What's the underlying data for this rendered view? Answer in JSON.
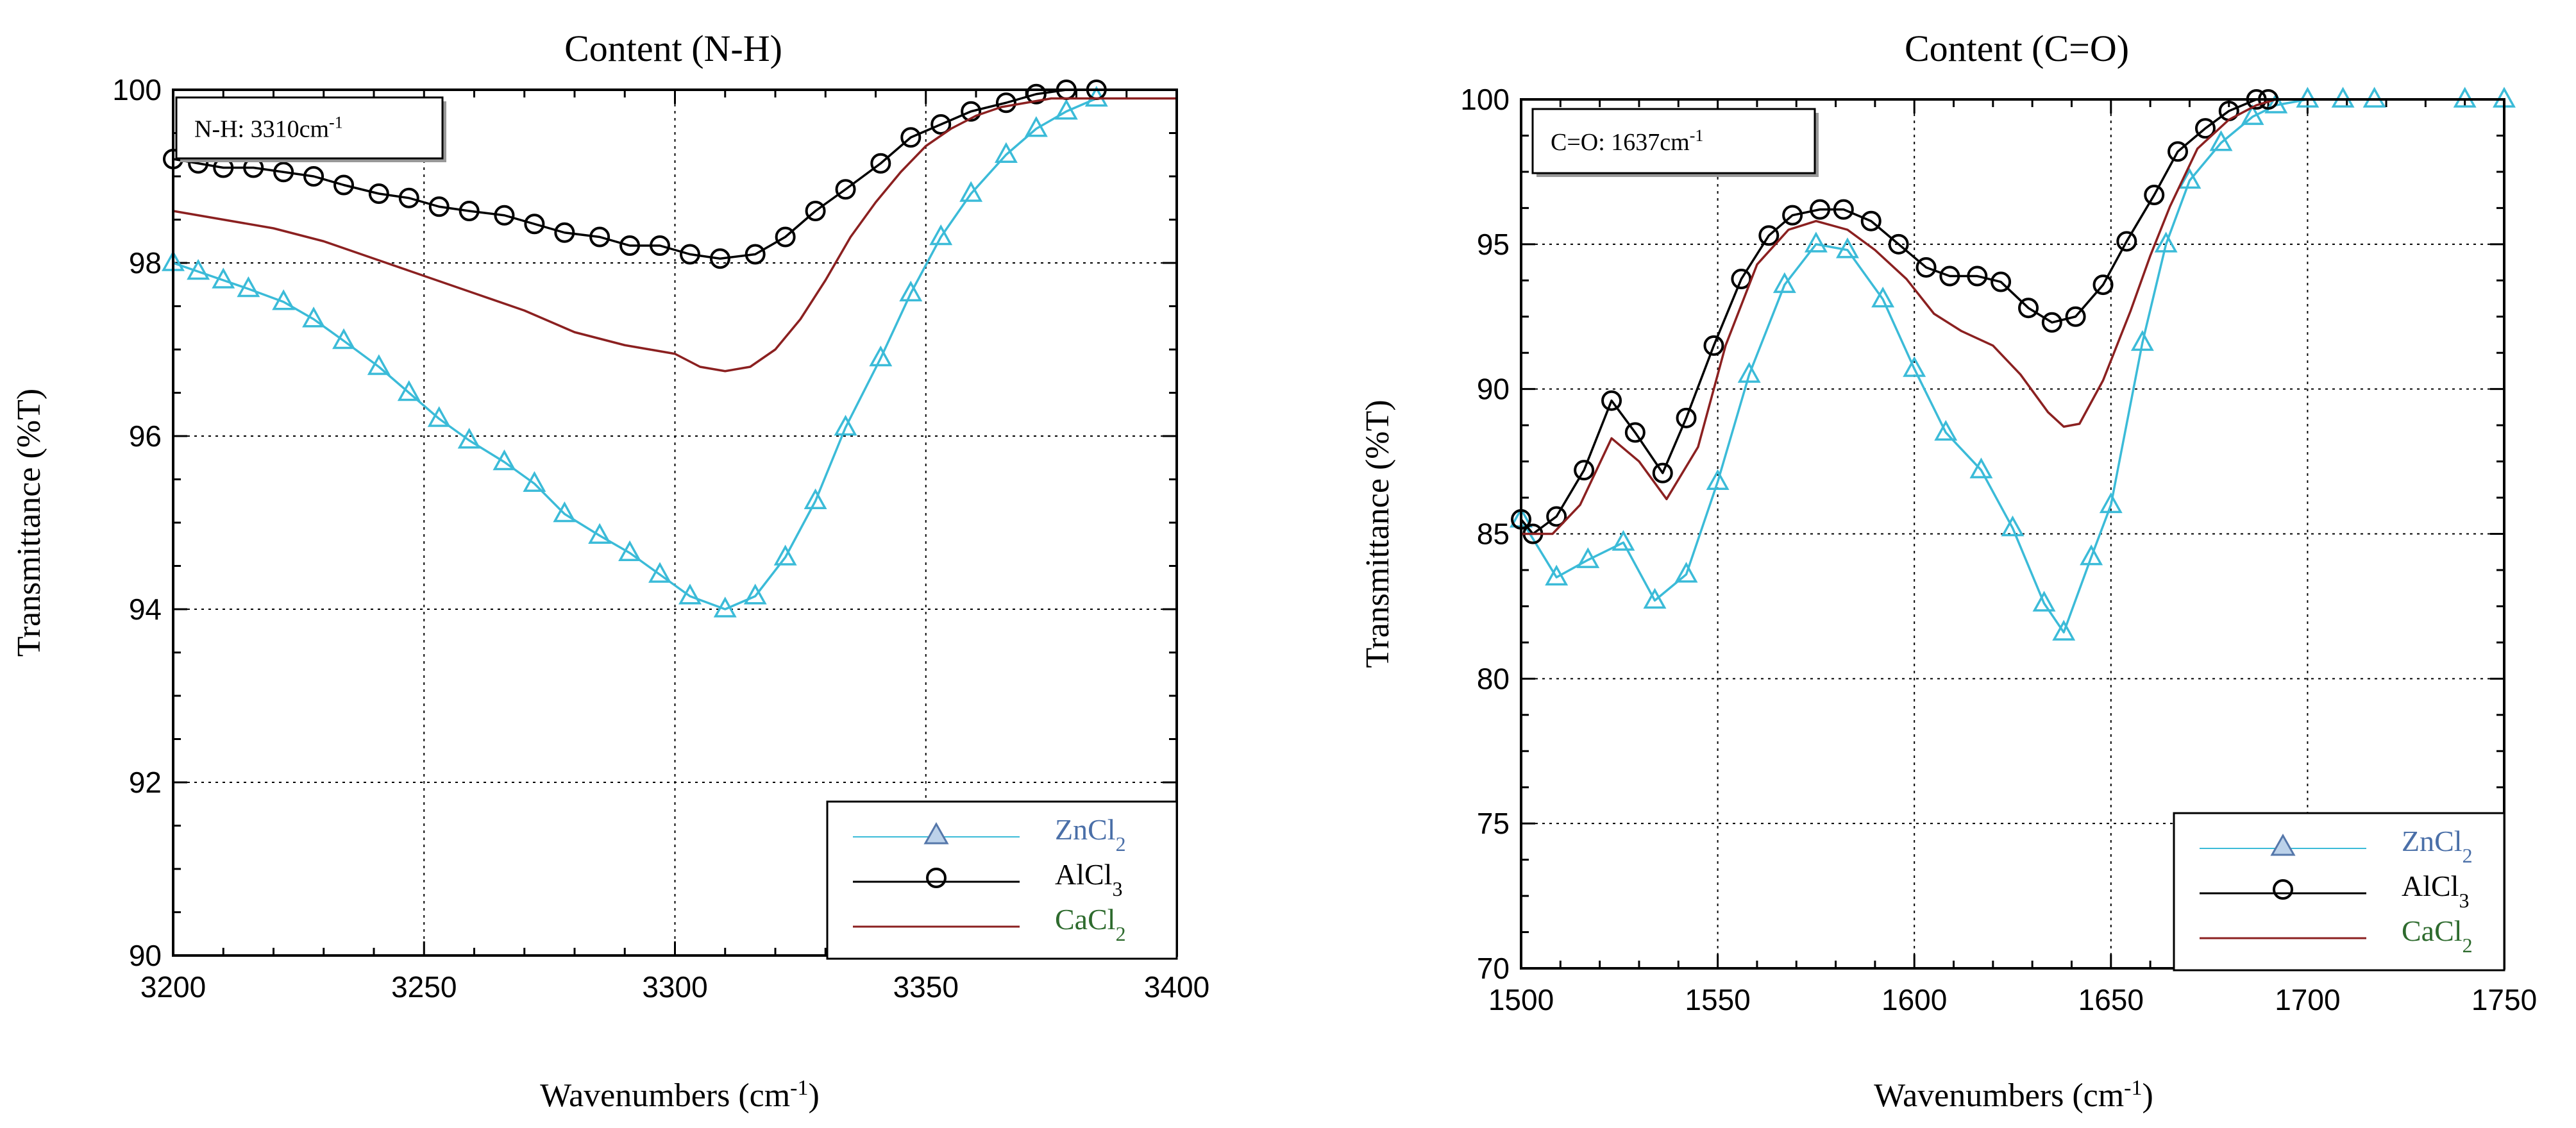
{
  "chart_data": [
    {
      "type": "line",
      "title": "Content (N-H)",
      "xlabel": "Wavenumbers (cm",
      "xlabel_sup": "-1",
      "xlabel_end": ")",
      "ylabel": "Transmittance (%T)",
      "xlim": [
        3200,
        3400
      ],
      "ylim": [
        90,
        100
      ],
      "xticks": [
        3200,
        3250,
        3300,
        3350,
        3400
      ],
      "yticks": [
        90,
        92,
        94,
        96,
        98,
        100
      ],
      "grid": true,
      "legend_position": "bottom-right",
      "annotation": {
        "text": "N-H: 3310cm",
        "sup": "-1"
      },
      "series": [
        {
          "name": "ZnCl",
          "name_sub": "2",
          "color": "#3bbbd8",
          "label_color": "#4a6fa8",
          "marker": "triangle",
          "x": [
            3200,
            3205,
            3210,
            3215,
            3222,
            3228,
            3234,
            3241,
            3247,
            3253,
            3259,
            3266,
            3272,
            3278,
            3285,
            3291,
            3297,
            3303,
            3310,
            3316,
            3322,
            3328,
            3334,
            3341,
            3347,
            3353,
            3359,
            3366,
            3372,
            3378,
            3384
          ],
          "y": [
            98.0,
            97.9,
            97.8,
            97.7,
            97.55,
            97.35,
            97.1,
            96.8,
            96.5,
            96.2,
            95.95,
            95.7,
            95.45,
            95.1,
            94.85,
            94.65,
            94.4,
            94.15,
            94.0,
            94.15,
            94.6,
            95.25,
            96.1,
            96.9,
            97.65,
            98.3,
            98.8,
            99.25,
            99.55,
            99.75,
            99.9
          ]
        },
        {
          "name": "AlCl",
          "name_sub": "3",
          "color": "#000000",
          "label_color": "#000000",
          "marker": "circle",
          "x": [
            3200,
            3205,
            3210,
            3216,
            3222,
            3228,
            3234,
            3241,
            3247,
            3253,
            3259,
            3266,
            3272,
            3278,
            3285,
            3291,
            3297,
            3303,
            3309,
            3316,
            3322,
            3328,
            3334,
            3341,
            3347,
            3353,
            3359,
            3366,
            3372,
            3378,
            3384
          ],
          "y": [
            99.2,
            99.15,
            99.1,
            99.1,
            99.05,
            99.0,
            98.9,
            98.8,
            98.75,
            98.65,
            98.6,
            98.55,
            98.45,
            98.35,
            98.3,
            98.2,
            98.2,
            98.1,
            98.05,
            98.1,
            98.3,
            98.6,
            98.85,
            99.15,
            99.45,
            99.6,
            99.75,
            99.85,
            99.95,
            100.0,
            100.0
          ]
        },
        {
          "name": "CaCl",
          "name_sub": "2",
          "color": "#8b2020",
          "label_color": "#2e6b2e",
          "marker": "none",
          "x": [
            3200,
            3210,
            3220,
            3230,
            3240,
            3250,
            3260,
            3270,
            3280,
            3290,
            3295,
            3300,
            3305,
            3310,
            3315,
            3320,
            3325,
            3330,
            3335,
            3340,
            3345,
            3350,
            3355,
            3360,
            3365,
            3370,
            3375,
            3380,
            3385,
            3390,
            3400
          ],
          "y": [
            98.6,
            98.5,
            98.4,
            98.25,
            98.05,
            97.85,
            97.65,
            97.45,
            97.2,
            97.05,
            97.0,
            96.95,
            96.8,
            96.75,
            96.8,
            97.0,
            97.35,
            97.8,
            98.3,
            98.7,
            99.05,
            99.35,
            99.55,
            99.7,
            99.8,
            99.85,
            99.9,
            99.9,
            99.9,
            99.9,
            99.9
          ]
        }
      ]
    },
    {
      "type": "line",
      "title": "Content (C=O)",
      "xlabel": "Wavenumbers (cm",
      "xlabel_sup": "-1",
      "xlabel_end": ")",
      "ylabel": "Transmittance (%T)",
      "xlim": [
        1500,
        1750
      ],
      "ylim": [
        70,
        100
      ],
      "xticks": [
        1500,
        1550,
        1600,
        1650,
        1700,
        1750
      ],
      "yticks": [
        70,
        75,
        80,
        85,
        90,
        95,
        100
      ],
      "grid": true,
      "legend_position": "bottom-right",
      "annotation": {
        "text": "C=O: 1637cm",
        "sup": "-1"
      },
      "series": [
        {
          "name": "ZnCl",
          "name_sub": "2",
          "color": "#3bbbd8",
          "label_color": "#4a6fa8",
          "marker": "triangle",
          "x": [
            1500,
            1509,
            1517,
            1526,
            1534,
            1542,
            1550,
            1558,
            1567,
            1575,
            1583,
            1592,
            1600,
            1608,
            1617,
            1625,
            1633,
            1638,
            1645,
            1650,
            1658,
            1664,
            1670,
            1678,
            1686,
            1692,
            1700,
            1709,
            1717,
            1740,
            1750
          ],
          "y": [
            85.5,
            83.5,
            84.1,
            84.7,
            82.7,
            83.6,
            86.8,
            90.5,
            93.6,
            95.0,
            94.8,
            93.1,
            90.7,
            88.5,
            87.2,
            85.2,
            82.6,
            81.6,
            84.2,
            86.0,
            91.6,
            95.0,
            97.2,
            98.5,
            99.4,
            99.8,
            100.0,
            100.0,
            100.0,
            100.0,
            100.0
          ]
        },
        {
          "name": "AlCl",
          "name_sub": "3",
          "color": "#000000",
          "label_color": "#000000",
          "marker": "circle",
          "x": [
            1500,
            1503,
            1509,
            1516,
            1523,
            1529,
            1536,
            1542,
            1549,
            1556,
            1563,
            1569,
            1576,
            1582,
            1589,
            1596,
            1603,
            1609,
            1616,
            1622,
            1629,
            1635,
            1641,
            1648,
            1654,
            1661,
            1667,
            1674,
            1680,
            1687,
            1690
          ],
          "y": [
            85.5,
            85.0,
            85.6,
            87.2,
            89.6,
            88.5,
            87.1,
            89.0,
            91.5,
            93.8,
            95.3,
            96.0,
            96.2,
            96.2,
            95.8,
            95.0,
            94.2,
            93.9,
            93.9,
            93.7,
            92.8,
            92.3,
            92.5,
            93.6,
            95.1,
            96.7,
            98.2,
            99.0,
            99.6,
            100.0,
            100.0
          ]
        },
        {
          "name": "CaCl",
          "name_sub": "2",
          "color": "#8b2020",
          "label_color": "#2e6b2e",
          "marker": "none",
          "x": [
            1500,
            1508,
            1515,
            1523,
            1530,
            1537,
            1545,
            1552,
            1560,
            1568,
            1575,
            1583,
            1590,
            1598,
            1605,
            1612,
            1620,
            1627,
            1634,
            1638,
            1642,
            1648,
            1655,
            1660,
            1665,
            1672,
            1680,
            1687,
            1692,
            1700,
            1750
          ],
          "y": [
            85.0,
            85.0,
            86.0,
            88.3,
            87.5,
            86.2,
            88.0,
            91.5,
            94.3,
            95.5,
            95.8,
            95.5,
            94.8,
            93.8,
            92.6,
            92.0,
            91.5,
            90.5,
            89.2,
            88.7,
            88.8,
            90.3,
            92.7,
            94.6,
            96.3,
            98.3,
            99.3,
            99.8,
            100.0,
            100.0,
            100.0
          ]
        }
      ]
    }
  ]
}
